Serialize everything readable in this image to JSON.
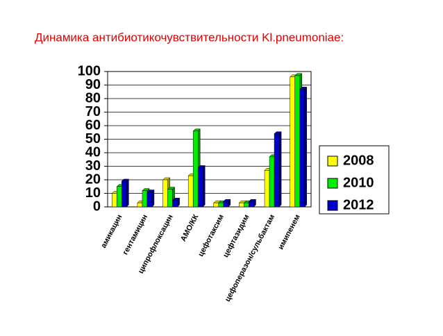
{
  "chart_data": {
    "type": "bar3d",
    "title": "Динамика антибиотикочувствительности Kl.pneumoniae:",
    "categories": [
      "амикацин",
      "гентамицин",
      "ципрофлоксацин",
      "АМО/КК",
      "цефотаксим",
      "цефтазидим",
      "цефоперазон/сульбактам",
      "имипенем"
    ],
    "series": [
      {
        "name": "2008",
        "color": "#ffff00",
        "values": [
          10,
          3,
          20,
          23,
          3,
          3,
          27,
          96
        ]
      },
      {
        "name": "2010",
        "color": "#00ee00",
        "values": [
          15,
          12,
          13,
          56,
          3,
          3,
          37,
          97
        ]
      },
      {
        "name": "2012",
        "color": "#0000cc",
        "values": [
          19,
          11,
          5,
          29,
          4,
          4,
          54,
          87
        ]
      }
    ],
    "ylim": [
      0,
      100
    ],
    "yticks": [
      0,
      10,
      20,
      30,
      40,
      50,
      60,
      70,
      80,
      90,
      100
    ],
    "grid": true,
    "legend": "right"
  }
}
